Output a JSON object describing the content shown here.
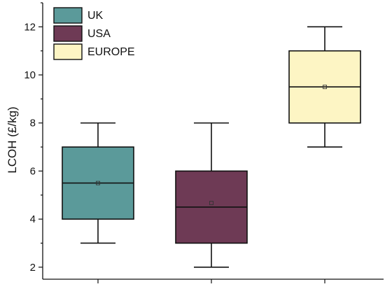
{
  "chart_data": {
    "type": "box",
    "xlabel": "",
    "ylabel": "LCOH (£/kg)",
    "ylim": [
      1.5,
      13
    ],
    "yticks": [
      2,
      4,
      6,
      8,
      10,
      12
    ],
    "grid": false,
    "legend": {
      "placement": "top-left",
      "entries": [
        "UK",
        "USA",
        "EUROPE"
      ]
    },
    "series": [
      {
        "name": "UK",
        "whisker_low": 3,
        "q1": 4,
        "median": 5.5,
        "q3": 7,
        "whisker_high": 8,
        "mean": 5.5,
        "color": "#5b9a9a"
      },
      {
        "name": "USA",
        "whisker_low": 2,
        "q1": 3,
        "median": 4.5,
        "q3": 6,
        "whisker_high": 8,
        "mean": 4.67,
        "color": "#6e3a55"
      },
      {
        "name": "EUROPE",
        "whisker_low": 7,
        "q1": 8,
        "median": 9.5,
        "q3": 11,
        "whisker_high": 12,
        "mean": 9.5,
        "color": "#fdf5c4"
      }
    ]
  }
}
